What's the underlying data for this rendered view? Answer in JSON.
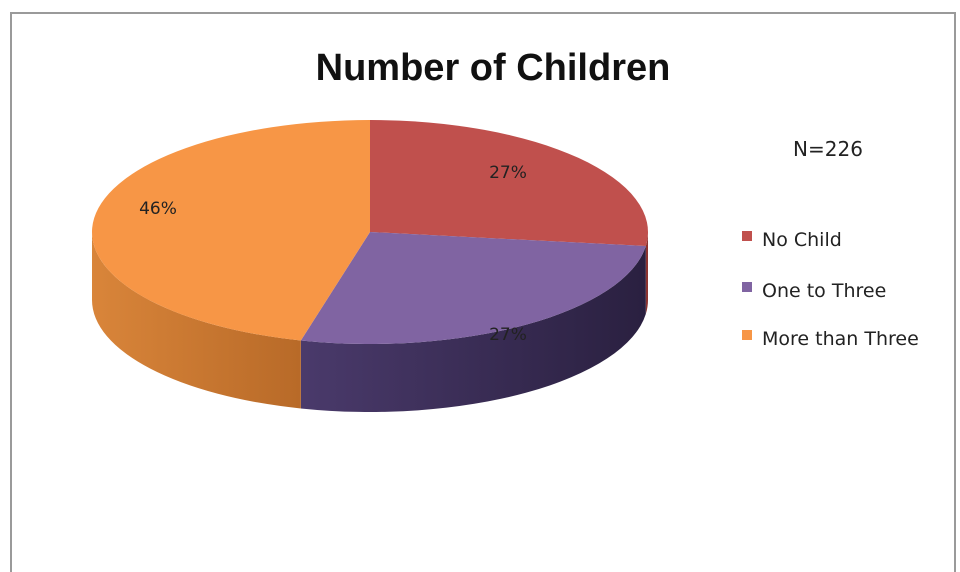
{
  "chart_data": {
    "type": "pie",
    "style": "3d",
    "title": "Number of Children",
    "annotation": "N=226",
    "legend_position": "right",
    "slices": [
      {
        "label": "No Child",
        "value": 27,
        "display": "27%",
        "color": "#c0504d",
        "side_color": "#8c3330"
      },
      {
        "label": "One to Three",
        "value": 27,
        "display": "27%",
        "color": "#8064a2",
        "side_color": "#3b2e55"
      },
      {
        "label": "More than Three",
        "value": 46,
        "display": "46%",
        "color": "#f79646",
        "side_color": "#c8762e"
      }
    ]
  }
}
